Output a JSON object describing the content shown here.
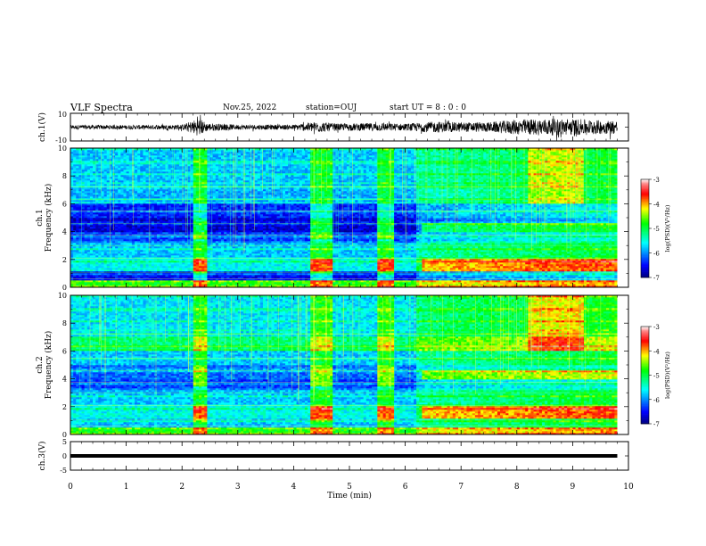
{
  "header": {
    "title": "VLF Spectra",
    "date": "Nov.25, 2022",
    "station": "station=OUJ",
    "start": "start UT =  8 : 0 : 0"
  },
  "chart_data": [
    {
      "type": "line",
      "name": "ch1-waveform",
      "ylabel": "ch.1(V)",
      "ylim": [
        -10,
        10
      ],
      "xlim": [
        0,
        10
      ],
      "y_ticks": [
        "10",
        "-10"
      ],
      "x": [
        0,
        0.5,
        1.0,
        1.5,
        2.0,
        2.3,
        2.45,
        3.0,
        3.5,
        4.0,
        4.4,
        4.8,
        5.5,
        6.0,
        6.5,
        7.0,
        7.5,
        8.0,
        8.5,
        9.0,
        9.5,
        9.8
      ],
      "envelope": [
        1.5,
        1.5,
        1.5,
        1.6,
        1.8,
        6.5,
        3.0,
        1.8,
        1.8,
        1.8,
        4.0,
        2.5,
        3.0,
        2.5,
        4.0,
        3.5,
        3.5,
        5.5,
        6.0,
        6.0,
        5.0,
        5.0
      ]
    },
    {
      "type": "heatmap",
      "name": "ch1-spectrogram",
      "ylabel": "ch.1\nFrequency (kHz)",
      "xlim": [
        0,
        10
      ],
      "ylim": [
        0,
        10
      ],
      "y_ticks": [
        "0",
        "2",
        "4",
        "6",
        "8",
        "10"
      ],
      "colorbar": {
        "label": "log(PSD)(V²/Hz)",
        "range": [
          -7,
          -3
        ],
        "ticks": [
          "-3",
          "-4",
          "-5",
          "-6",
          "-7"
        ]
      }
    },
    {
      "type": "heatmap",
      "name": "ch2-spectrogram",
      "ylabel": "ch.2\nFrequency (kHz)",
      "xlim": [
        0,
        10
      ],
      "ylim": [
        0,
        10
      ],
      "y_ticks": [
        "0",
        "2",
        "4",
        "6",
        "8",
        "10"
      ],
      "colorbar": {
        "label": "log(PSD)(V²/Hz)",
        "range": [
          -7,
          -3
        ],
        "ticks": [
          "-3",
          "-4",
          "-5",
          "-6",
          "-7"
        ]
      }
    },
    {
      "type": "line",
      "name": "ch3-waveform",
      "ylabel": "ch.3(V)",
      "ylim": [
        -5,
        5
      ],
      "xlim": [
        0,
        10
      ],
      "y_ticks": [
        "5",
        "0",
        "-5"
      ],
      "x": [
        0,
        9.8
      ],
      "y": [
        0,
        0
      ]
    }
  ],
  "x_axis": {
    "label": "Time (min)",
    "ticks": [
      "0",
      "1",
      "2",
      "3",
      "4",
      "5",
      "6",
      "7",
      "8",
      "9",
      "10"
    ]
  },
  "colors": {
    "background": "#ffffff",
    "colormap": [
      "#00007f",
      "#0000ff",
      "#00ffff",
      "#00ff00",
      "#ffff00",
      "#ff0000",
      "#ff8080",
      "#ffffff"
    ]
  }
}
